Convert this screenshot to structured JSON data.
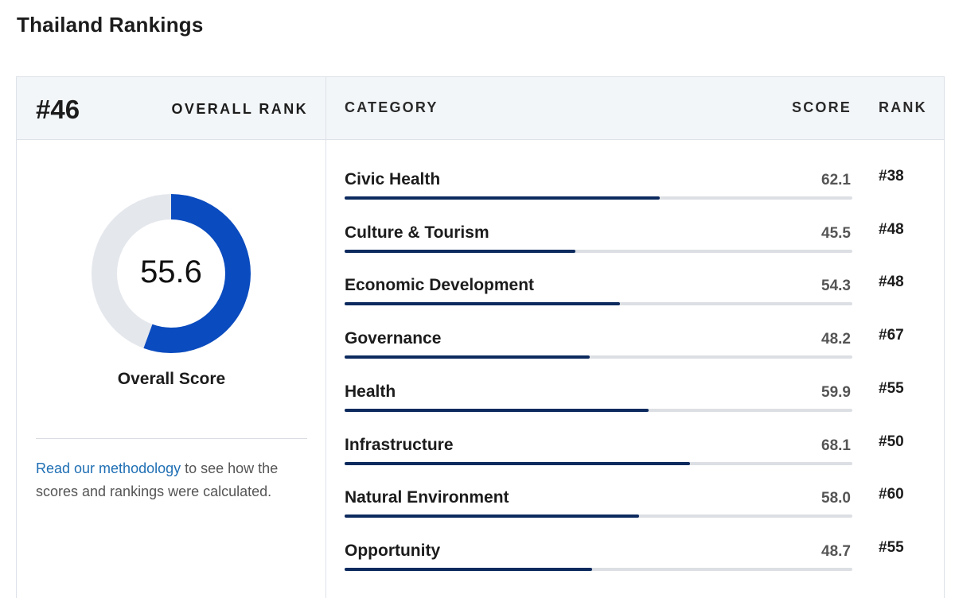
{
  "page": {
    "title": "Thailand Rankings"
  },
  "overall": {
    "rank": "#46",
    "rank_label": "OVERALL RANK",
    "score": 55.6,
    "score_text": "55.6",
    "score_label": "Overall Score",
    "score_max": 100
  },
  "methodology": {
    "link_text": "Read our methodology",
    "rest_text": " to see how the scores and rankings were calculated."
  },
  "table": {
    "headers": {
      "category": "CATEGORY",
      "score": "SCORE",
      "rank": "RANK"
    },
    "rows": [
      {
        "category": "Civic Health",
        "score": "62.1",
        "rank": "#38"
      },
      {
        "category": "Culture & Tourism",
        "score": "45.5",
        "rank": "#48"
      },
      {
        "category": "Economic Development",
        "score": "54.3",
        "rank": "#48"
      },
      {
        "category": "Governance",
        "score": "48.2",
        "rank": "#67"
      },
      {
        "category": "Health",
        "score": "59.9",
        "rank": "#55"
      },
      {
        "category": "Infrastructure",
        "score": "68.1",
        "rank": "#50"
      },
      {
        "category": "Natural Environment",
        "score": "58.0",
        "rank": "#60"
      },
      {
        "category": "Opportunity",
        "score": "48.7",
        "rank": "#55"
      }
    ]
  },
  "colors": {
    "donut_fill": "#0a4bbf",
    "donut_track": "#e4e7ec",
    "bar_fill": "#0c2a5e",
    "bar_track": "#dcdfe3",
    "link": "#1f6fb4",
    "header_band": "#f3f6f9"
  }
}
